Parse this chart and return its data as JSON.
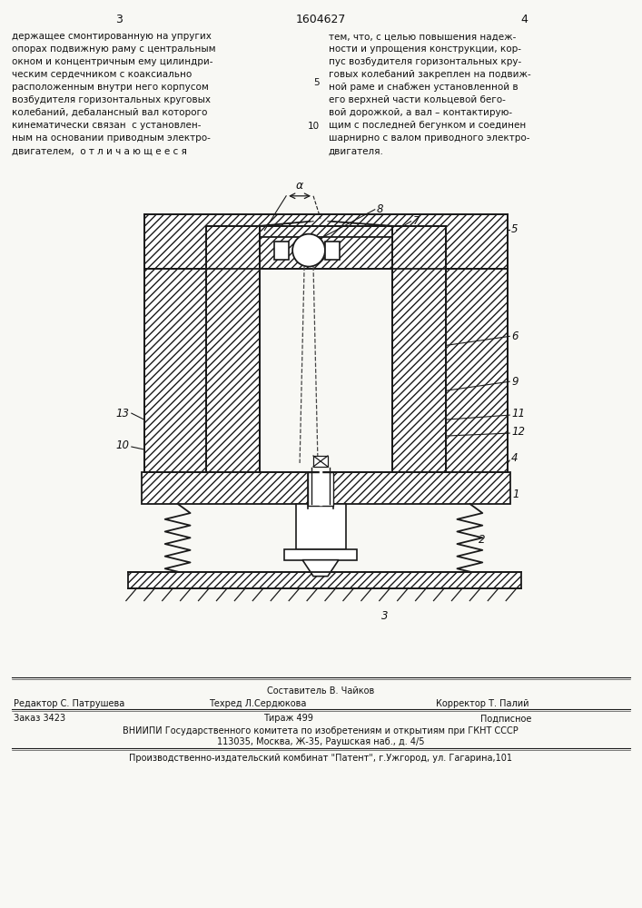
{
  "page_width": 7.07,
  "page_height": 10.0,
  "bg_color": "#f8f8f4",
  "top_left_num": "3",
  "top_center_patent": "1604627",
  "top_right_num": "4",
  "text_left": "держащее смонтированную на упругих\nопорах подвижную раму с центральным\nокном и концентричным ему цилиндри-\nческим сердечником с коаксиально\nрасположенным внутри него корпусом\nвозбудителя горизонтальных круговых\nколебаний, дебалансный вал которого\nкинематически связан  с установлен-\nным на основании приводным электро-\nдвигателем,  о т л и ч а ю щ е е с я",
  "text_right": "тем, что, с целью повышения надеж-\nности и упрощения конструкции, кор-\nпус возбудителя горизонтальных кру-\nговых колебаний закреплен на подвиж-\nной раме и снабжен установленной в\nего верхней части кольцевой бего-\nвой дорожкой, а вал – контактирую-\nщим с последней бегунком и соединен\nшарнирно с валом приводного электро-\nдвигателя.",
  "footer_sestavitel_label": "Составитель В. Чайков",
  "footer_editor": "Редактор С. Патрушева",
  "footer_tehred": "Техред Л.Сердюкова",
  "footer_korrektor": "Корректор Т. Палий",
  "footer_zakaz": "Заказ 3423",
  "footer_tirazh": "Тираж 499",
  "footer_podpisnoe": "Подписное",
  "footer_vniip": "ВНИИПИ Государственного комитета по изобретениям и открытиям при ГКНТ СССР",
  "footer_address": "113035, Москва, Ж-35, Раушская наб., д. 4/5",
  "footer_kombinat": "Производственно-издательский комбинат \"Патент\", г.Ужгород, ул. Гагарина,101",
  "line_color": "#1a1a1a",
  "text_color": "#111111",
  "hatch_lw": 0.5,
  "outer_lw": 1.3
}
